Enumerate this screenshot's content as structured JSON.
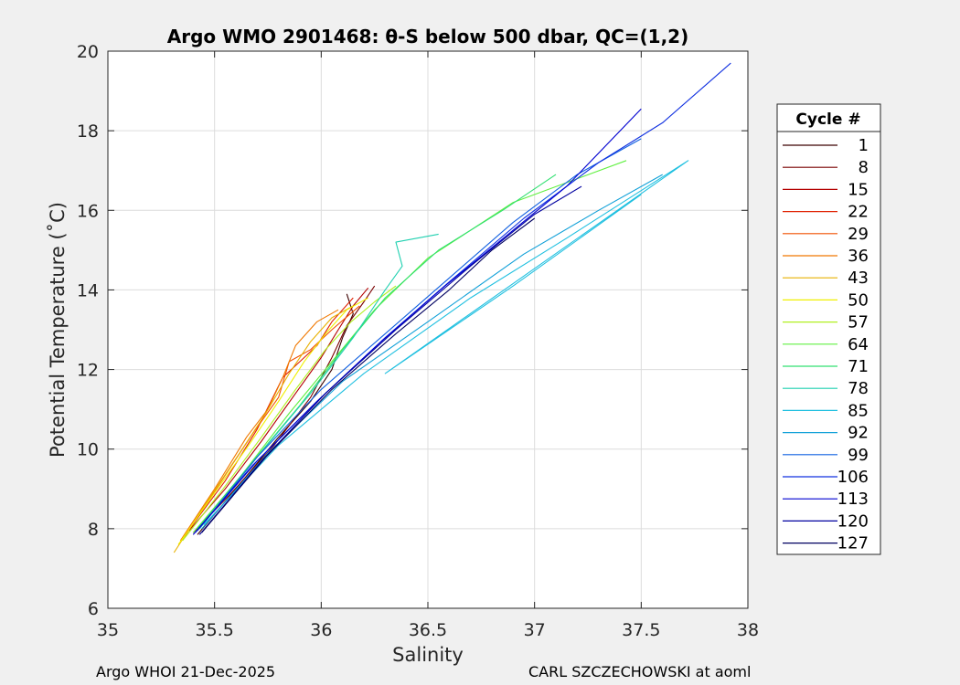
{
  "chart_data": {
    "type": "line",
    "title": "Argo WMO 2901468: θ-S below 500 dbar,  QC=(1,2)",
    "xlabel": "Salinity",
    "ylabel": "Potential Temperature (˚C)",
    "xlim": [
      35,
      38
    ],
    "ylim": [
      6,
      20
    ],
    "xticks": [
      35,
      35.5,
      36,
      36.5,
      37,
      37.5,
      38
    ],
    "xtick_labels": [
      "35",
      "35.5",
      "36",
      "36.5",
      "37",
      "37.5",
      "38"
    ],
    "yticks": [
      6,
      8,
      10,
      12,
      14,
      16,
      18,
      20
    ],
    "ytick_labels": [
      "6",
      "8",
      "10",
      "12",
      "14",
      "16",
      "18",
      "20"
    ],
    "grid": true,
    "legend": {
      "title": "Cycle #",
      "placement": "outside-right",
      "entries": [
        "1",
        "8",
        "15",
        "22",
        "29",
        "36",
        "43",
        "50",
        "57",
        "64",
        "71",
        "78",
        "85",
        "92",
        "99",
        "106",
        "113",
        "120",
        "127"
      ],
      "colors": [
        "#3c0000",
        "#7a0000",
        "#b40000",
        "#e02000",
        "#f05000",
        "#f07800",
        "#e8b000",
        "#f0f000",
        "#b0f020",
        "#60f040",
        "#30e070",
        "#20d0b0",
        "#20c0e0",
        "#10a0d8",
        "#1060e0",
        "#1030e0",
        "#0000d0",
        "#0000a0",
        "#000060"
      ]
    },
    "series": [
      {
        "name": "1",
        "points": [
          [
            35.42,
            7.85
          ],
          [
            35.6,
            9.0
          ],
          [
            35.8,
            10.3
          ],
          [
            35.95,
            11.2
          ],
          [
            36.05,
            12.0
          ],
          [
            36.1,
            12.8
          ],
          [
            36.15,
            13.4
          ],
          [
            36.12,
            13.9
          ]
        ]
      },
      {
        "name": "8",
        "points": [
          [
            35.4,
            7.9
          ],
          [
            35.58,
            8.9
          ],
          [
            35.78,
            10.1
          ],
          [
            35.95,
            11.3
          ],
          [
            36.05,
            12.3
          ],
          [
            36.12,
            13.1
          ],
          [
            36.2,
            13.7
          ],
          [
            36.25,
            14.1
          ]
        ]
      },
      {
        "name": "15",
        "points": [
          [
            35.38,
            7.95
          ],
          [
            35.55,
            9.0
          ],
          [
            35.72,
            10.2
          ],
          [
            35.88,
            11.4
          ],
          [
            36.0,
            12.3
          ],
          [
            36.08,
            13.0
          ],
          [
            36.15,
            13.6
          ],
          [
            36.22,
            14.05
          ]
        ]
      },
      {
        "name": "22",
        "points": [
          [
            35.37,
            7.9
          ],
          [
            35.55,
            9.2
          ],
          [
            35.7,
            10.5
          ],
          [
            35.82,
            11.8
          ],
          [
            35.9,
            12.2
          ],
          [
            35.98,
            12.6
          ],
          [
            36.05,
            13.2
          ],
          [
            36.15,
            13.8
          ]
        ]
      },
      {
        "name": "29",
        "points": [
          [
            35.36,
            7.8
          ],
          [
            35.52,
            9.1
          ],
          [
            35.68,
            10.4
          ],
          [
            35.8,
            11.3
          ],
          [
            35.85,
            12.2
          ],
          [
            35.95,
            12.5
          ],
          [
            36.05,
            13.0
          ],
          [
            36.18,
            13.6
          ]
        ]
      },
      {
        "name": "36",
        "points": [
          [
            35.34,
            7.7
          ],
          [
            35.5,
            9.0
          ],
          [
            35.65,
            10.3
          ],
          [
            35.75,
            11.0
          ],
          [
            35.82,
            11.8
          ],
          [
            35.88,
            12.6
          ],
          [
            35.98,
            13.2
          ],
          [
            36.08,
            13.5
          ]
        ]
      },
      {
        "name": "43",
        "points": [
          [
            35.31,
            7.4
          ],
          [
            35.48,
            8.8
          ],
          [
            35.63,
            10.0
          ],
          [
            35.74,
            10.9
          ],
          [
            35.85,
            11.9
          ],
          [
            35.95,
            12.7
          ],
          [
            36.05,
            13.3
          ],
          [
            36.15,
            13.6
          ]
        ]
      },
      {
        "name": "50",
        "points": [
          [
            35.33,
            7.6
          ],
          [
            35.5,
            8.9
          ],
          [
            35.66,
            10.1
          ],
          [
            35.8,
            11.2
          ],
          [
            35.92,
            12.2
          ],
          [
            36.02,
            12.9
          ],
          [
            36.12,
            13.5
          ],
          [
            36.22,
            13.8
          ]
        ]
      },
      {
        "name": "57",
        "points": [
          [
            35.35,
            7.7
          ],
          [
            35.54,
            9.0
          ],
          [
            35.72,
            10.3
          ],
          [
            35.88,
            11.5
          ],
          [
            36.02,
            12.5
          ],
          [
            36.14,
            13.2
          ],
          [
            36.25,
            13.7
          ],
          [
            36.35,
            14.1
          ]
        ]
      },
      {
        "name": "64",
        "points": [
          [
            35.4,
            7.9
          ],
          [
            35.62,
            9.3
          ],
          [
            35.85,
            10.9
          ],
          [
            36.05,
            12.2
          ],
          [
            36.25,
            13.5
          ],
          [
            36.5,
            14.8
          ],
          [
            36.9,
            16.2
          ],
          [
            37.43,
            17.25
          ]
        ]
      },
      {
        "name": "71",
        "points": [
          [
            35.42,
            8.0
          ],
          [
            35.65,
            9.5
          ],
          [
            35.9,
            11.1
          ],
          [
            36.1,
            12.5
          ],
          [
            36.3,
            13.8
          ],
          [
            36.55,
            15.0
          ],
          [
            36.85,
            16.0
          ],
          [
            37.1,
            16.9
          ]
        ]
      },
      {
        "name": "78",
        "points": [
          [
            35.43,
            8.0
          ],
          [
            35.7,
            9.8
          ],
          [
            35.95,
            11.4
          ],
          [
            36.15,
            12.8
          ],
          [
            36.3,
            14.0
          ],
          [
            36.38,
            14.6
          ],
          [
            36.35,
            15.2
          ],
          [
            36.55,
            15.4
          ]
        ]
      },
      {
        "name": "85",
        "points": [
          [
            35.45,
            8.1
          ],
          [
            35.8,
            10.1
          ],
          [
            36.2,
            11.9
          ],
          [
            36.7,
            13.8
          ],
          [
            37.15,
            15.3
          ],
          [
            37.72,
            17.25
          ],
          [
            36.3,
            11.9
          ],
          [
            36.9,
            14.1
          ],
          [
            37.5,
            16.4
          ]
        ]
      },
      {
        "name": "92",
        "points": [
          [
            35.44,
            8.0
          ],
          [
            35.75,
            9.9
          ],
          [
            36.1,
            11.7
          ],
          [
            36.5,
            13.2
          ],
          [
            36.95,
            14.9
          ],
          [
            37.3,
            16.0
          ],
          [
            37.6,
            16.9
          ]
        ]
      },
      {
        "name": "99",
        "points": [
          [
            35.42,
            7.95
          ],
          [
            35.7,
            9.8
          ],
          [
            36.0,
            11.5
          ],
          [
            36.3,
            12.9
          ],
          [
            36.6,
            14.3
          ],
          [
            36.9,
            15.7
          ],
          [
            37.2,
            16.9
          ],
          [
            37.5,
            17.8
          ]
        ]
      },
      {
        "name": "106",
        "points": [
          [
            35.41,
            7.9
          ],
          [
            35.7,
            9.7
          ],
          [
            36.0,
            11.3
          ],
          [
            36.3,
            12.8
          ],
          [
            36.6,
            14.2
          ],
          [
            36.95,
            15.8
          ],
          [
            37.3,
            17.2
          ],
          [
            37.6,
            18.2
          ],
          [
            37.92,
            19.7
          ]
        ]
      },
      {
        "name": "113",
        "points": [
          [
            35.4,
            7.85
          ],
          [
            35.68,
            9.6
          ],
          [
            35.98,
            11.2
          ],
          [
            36.28,
            12.7
          ],
          [
            36.58,
            14.1
          ],
          [
            36.9,
            15.5
          ],
          [
            37.15,
            16.6
          ],
          [
            37.5,
            18.55
          ]
        ]
      },
      {
        "name": "120",
        "points": [
          [
            35.43,
            7.85
          ],
          [
            35.72,
            9.7
          ],
          [
            36.02,
            11.4
          ],
          [
            36.35,
            13.0
          ],
          [
            36.7,
            14.6
          ],
          [
            37.0,
            15.9
          ],
          [
            37.22,
            16.6
          ]
        ]
      },
      {
        "name": "127",
        "points": [
          [
            35.44,
            7.9
          ],
          [
            35.74,
            9.8
          ],
          [
            36.05,
            11.5
          ],
          [
            36.35,
            12.9
          ],
          [
            36.6,
            14.0
          ],
          [
            36.8,
            15.0
          ],
          [
            37.0,
            15.8
          ]
        ]
      }
    ]
  },
  "footer": {
    "left": "Argo WHOI 21-Dec-2025",
    "right": "CARL SZCZECHOWSKI at aoml"
  }
}
